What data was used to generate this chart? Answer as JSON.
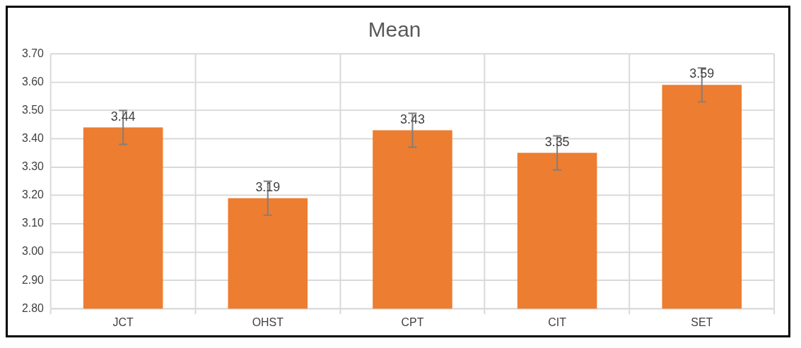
{
  "chart_data": {
    "type": "bar",
    "title": "Mean",
    "categories": [
      "JCT",
      "OHST",
      "CPT",
      "CIT",
      "SET"
    ],
    "values": [
      3.44,
      3.19,
      3.43,
      3.35,
      3.59
    ],
    "errors": [
      0.06,
      0.06,
      0.06,
      0.06,
      0.06
    ],
    "color": "#ed7d31",
    "ylim": [
      2.8,
      3.7
    ],
    "yticks": [
      {
        "value": 2.8,
        "label": "2.80"
      },
      {
        "value": 2.9,
        "label": "2.90"
      },
      {
        "value": 3.0,
        "label": "3.00"
      },
      {
        "value": 3.1,
        "label": "3.10"
      },
      {
        "value": 3.2,
        "label": "3.20"
      },
      {
        "value": 3.3,
        "label": "3.30"
      },
      {
        "value": 3.4,
        "label": "3.40"
      },
      {
        "value": 3.5,
        "label": "3.50"
      },
      {
        "value": 3.6,
        "label": "3.60"
      },
      {
        "value": 3.7,
        "label": "3.70"
      }
    ],
    "grid": true,
    "data_labels": true
  }
}
